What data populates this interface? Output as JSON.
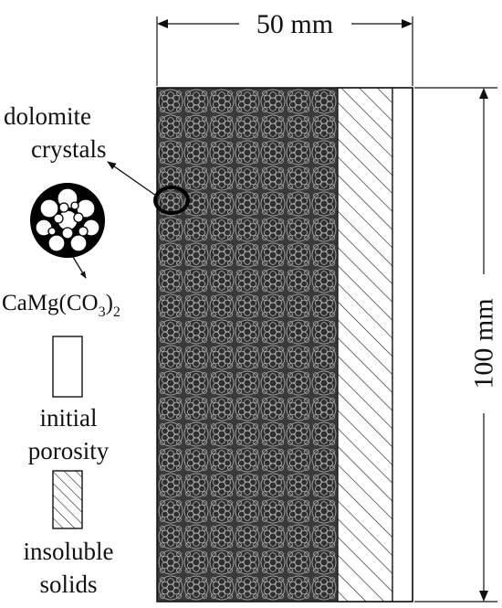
{
  "dimensions": {
    "width_label": "50 mm",
    "height_label": "100 mm"
  },
  "labels": {
    "crystals_line1": "dolomite",
    "crystals_line2": "crystals",
    "formula_prefix": "CaMg(CO",
    "formula_sub1": "3",
    "formula_close": ")",
    "formula_sub2": "2",
    "porosity_line1": "initial",
    "porosity_line2": "porosity",
    "insoluble_line1": "insoluble",
    "insoluble_line2": "solids"
  },
  "legend": {
    "porosity_swatch": "blank",
    "insoluble_swatch": "diagonal-hatch"
  }
}
